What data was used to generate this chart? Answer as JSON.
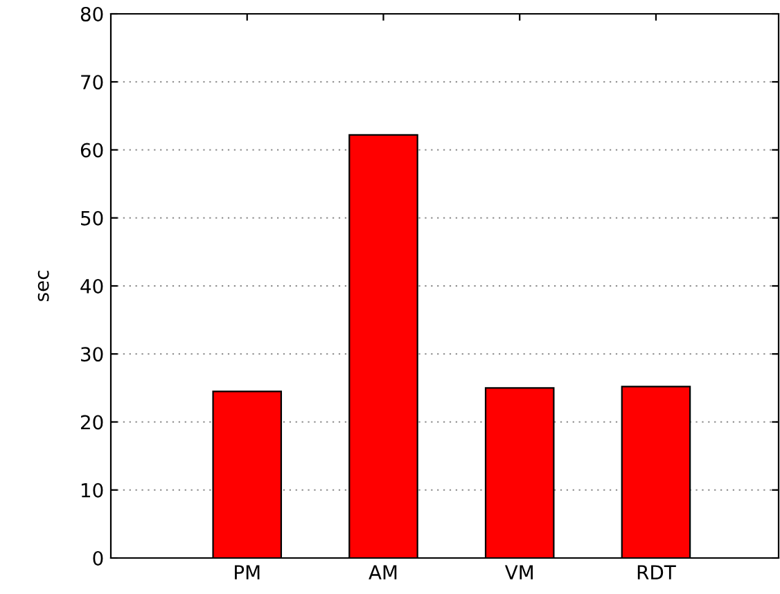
{
  "chart_data": {
    "type": "bar",
    "ylabel": "sec",
    "categories": [
      "PM",
      "AM",
      "VM",
      "RDT"
    ],
    "values": [
      24.5,
      62.2,
      25.0,
      25.2
    ],
    "color": "#ff0000",
    "ylim": [
      0,
      80
    ],
    "yticks": [
      0,
      10,
      20,
      30,
      40,
      50,
      60,
      70,
      80
    ],
    "grid": "y"
  }
}
